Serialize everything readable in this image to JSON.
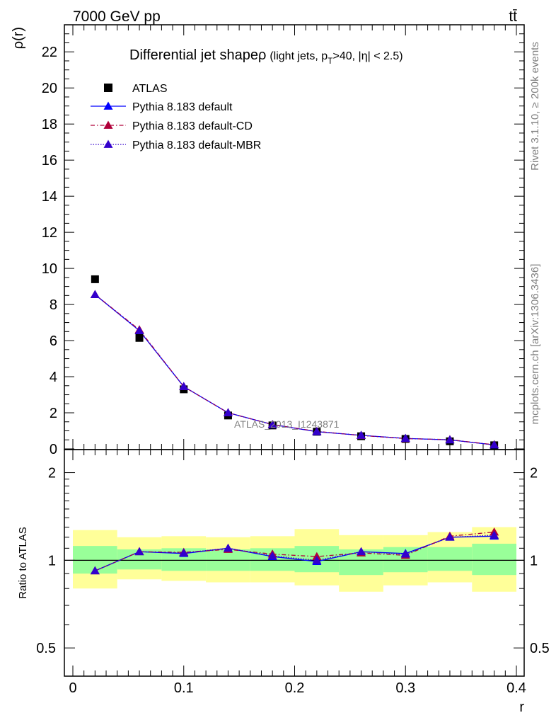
{
  "header": {
    "energy_label": "7000 GeV pp",
    "process_label": "tt̄"
  },
  "side_labels": {
    "rivet": "Rivet 3.1.10, ≥ 200k events",
    "mcplots": "mcplots.cern.ch [arXiv:1306.3436]"
  },
  "watermark": "ATLAS_2013_I1243871",
  "colors": {
    "data": "#000000",
    "default": "#0000ff",
    "cd": "#b00039",
    "mbr": "#3300cc",
    "band_stat": "#99ff99",
    "band_total": "#ffff99"
  },
  "chart_data": [
    {
      "type": "line",
      "title_main": "Differential jet shapeρ",
      "title_sub": "(light jets, p",
      "title_sub_index": "T",
      "title_sub_rest": ">40, |η| < 2.5)",
      "xlabel": "r",
      "ylabel": "ρ(r)",
      "xlim": [
        0,
        0.4
      ],
      "ylim": [
        0,
        23.5
      ],
      "yticks": [
        0,
        2,
        4,
        6,
        8,
        10,
        12,
        14,
        16,
        18,
        20,
        22
      ],
      "ytick_labels": [
        "0",
        "2",
        "4",
        "6",
        "8",
        "10",
        "12",
        "14",
        "16",
        "18",
        "20",
        "22"
      ],
      "x": [
        0.02,
        0.06,
        0.1,
        0.14,
        0.18,
        0.22,
        0.26,
        0.3,
        0.34,
        0.38
      ],
      "legend_position": "top-left",
      "series": [
        {
          "name": "ATLAS",
          "key": "data",
          "marker": "square",
          "values": [
            9.4,
            6.15,
            3.3,
            1.85,
            1.3,
            0.95,
            0.7,
            0.55,
            0.42,
            0.2
          ]
        },
        {
          "name": "Pythia 8.183 default",
          "key": "default",
          "marker": "triangle",
          "line": "solid",
          "values": [
            8.55,
            6.55,
            3.45,
            2.0,
            1.35,
            0.95,
            0.75,
            0.58,
            0.5,
            0.22
          ]
        },
        {
          "name": "Pythia 8.183 default-CD",
          "key": "cd",
          "marker": "triangle",
          "line": "dashdot",
          "values": [
            8.55,
            6.6,
            3.45,
            2.0,
            1.35,
            0.97,
            0.74,
            0.57,
            0.51,
            0.23
          ]
        },
        {
          "name": "Pythia 8.183 default-MBR",
          "key": "mbr",
          "marker": "triangle",
          "line": "dotted",
          "values": [
            8.55,
            6.55,
            3.45,
            2.0,
            1.34,
            0.96,
            0.75,
            0.58,
            0.5,
            0.22
          ]
        }
      ]
    },
    {
      "type": "line",
      "ylabel": "Ratio to ATLAS",
      "xlabel": "r",
      "xlim": [
        0,
        0.4
      ],
      "ylim": [
        0.4,
        2.4
      ],
      "yscale": "log",
      "yticks": [
        0.5,
        1,
        2
      ],
      "ytick_labels": [
        "0.5",
        "1",
        "2"
      ],
      "xticks": [
        0,
        0.1,
        0.2,
        0.3,
        0.4
      ],
      "xtick_labels": [
        "0",
        "0.1",
        "0.2",
        "0.3",
        "0.4"
      ],
      "bin_edges": [
        0,
        0.04,
        0.08,
        0.12,
        0.16,
        0.2,
        0.24,
        0.28,
        0.32,
        0.36,
        0.4
      ],
      "band_stat": [
        [
          0.9,
          1.12
        ],
        [
          0.93,
          1.09
        ],
        [
          0.92,
          1.1
        ],
        [
          0.92,
          1.09
        ],
        [
          0.92,
          1.1
        ],
        [
          0.91,
          1.12
        ],
        [
          0.89,
          1.09
        ],
        [
          0.91,
          1.11
        ],
        [
          0.92,
          1.11
        ],
        [
          0.89,
          1.14
        ]
      ],
      "band_total": [
        [
          0.8,
          1.27
        ],
        [
          0.86,
          1.2
        ],
        [
          0.85,
          1.21
        ],
        [
          0.84,
          1.2
        ],
        [
          0.84,
          1.21
        ],
        [
          0.82,
          1.28
        ],
        [
          0.78,
          1.22
        ],
        [
          0.82,
          1.22
        ],
        [
          0.84,
          1.25
        ],
        [
          0.78,
          1.3
        ]
      ],
      "x": [
        0.02,
        0.06,
        0.1,
        0.14,
        0.18,
        0.22,
        0.26,
        0.3,
        0.34,
        0.38
      ],
      "series": [
        {
          "name": "Pythia 8.183 default",
          "key": "default",
          "values": [
            0.92,
            1.07,
            1.055,
            1.1,
            1.03,
            0.99,
            1.07,
            1.055,
            1.2,
            1.21
          ]
        },
        {
          "name": "Pythia 8.183 default-CD",
          "key": "cd",
          "values": [
            0.92,
            1.07,
            1.065,
            1.09,
            1.05,
            1.03,
            1.06,
            1.04,
            1.21,
            1.25
          ]
        },
        {
          "name": "Pythia 8.183 default-MBR",
          "key": "mbr",
          "values": [
            0.92,
            1.07,
            1.06,
            1.1,
            1.035,
            1.0,
            1.07,
            1.05,
            1.2,
            1.22
          ]
        }
      ]
    }
  ]
}
